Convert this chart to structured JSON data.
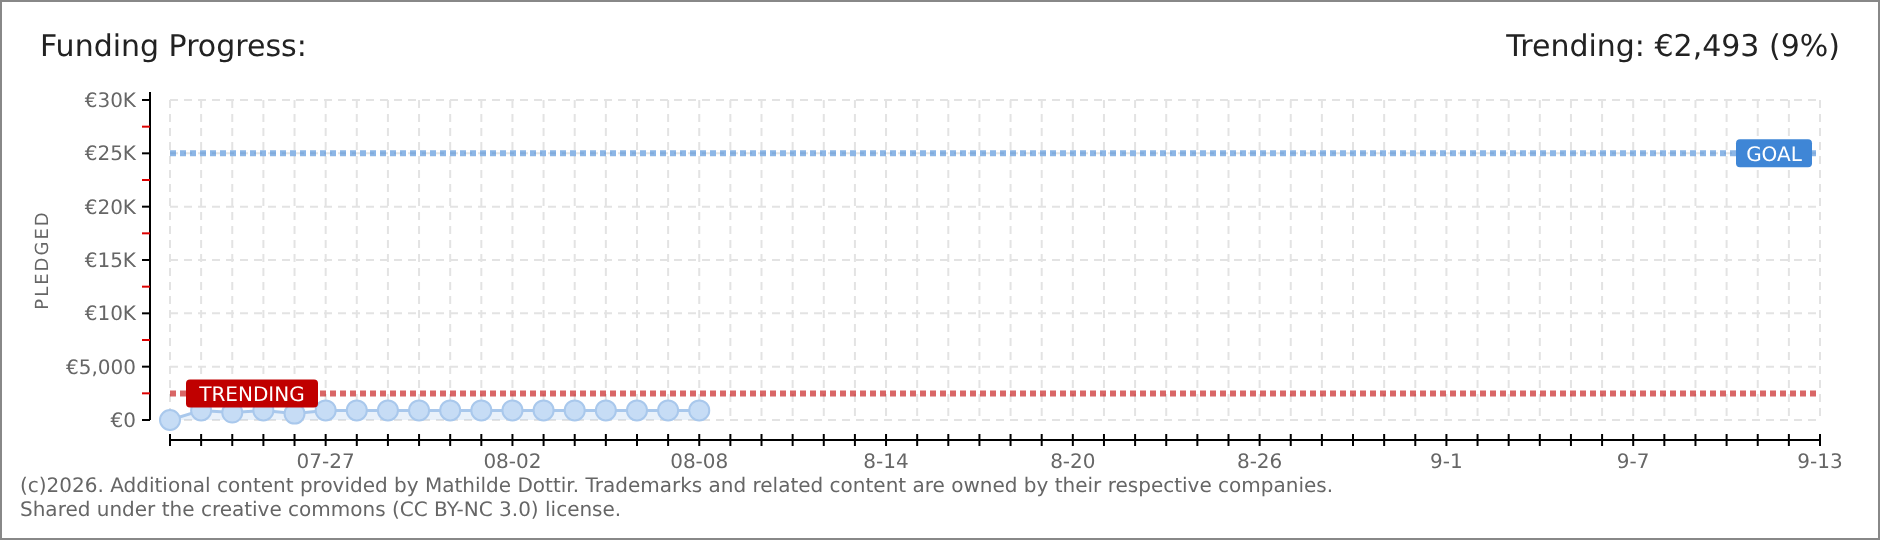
{
  "chart_data": {
    "type": "area",
    "title": "Funding Progress:",
    "subtitle": "Trending: €2,493 (9%)",
    "ylabel": "PLEDGED",
    "x": [
      "--07-22",
      "--07-23",
      "--07-24",
      "--07-25",
      "--07-26",
      "--07-27",
      "--07-28",
      "--07-29",
      "--07-30",
      "--07-31",
      "--08-01",
      "--08-02",
      "--08-03",
      "--08-04",
      "--08-05",
      "--08-06",
      "--08-07",
      "--08-08"
    ],
    "series": [
      {
        "color": "#a9c8ec",
        "values": [
          0,
          900,
          700,
          900,
          600,
          900,
          900,
          900,
          900,
          900,
          900,
          900,
          900,
          900,
          900,
          900,
          900,
          900
        ]
      }
    ],
    "marker": "circle",
    "xlim": [
      "--07-22",
      "--09-13"
    ],
    "xticks": [
      {
        "value": "--07-22",
        "label": null
      },
      {
        "value": "--07-23",
        "label": null
      },
      {
        "value": "--07-24",
        "label": null
      },
      {
        "value": "--07-25",
        "label": null
      },
      {
        "value": "--07-26",
        "label": null
      },
      {
        "value": "--07-27",
        "label": "07-27"
      },
      {
        "value": "--07-28",
        "label": null
      },
      {
        "value": "--07-29",
        "label": null
      },
      {
        "value": "--07-30",
        "label": null
      },
      {
        "value": "--07-31",
        "label": null
      },
      {
        "value": "--08-01",
        "label": null
      },
      {
        "value": "--08-02",
        "label": "08-02"
      },
      {
        "value": "--08-03",
        "label": null
      },
      {
        "value": "--08-04",
        "label": null
      },
      {
        "value": "--08-05",
        "label": null
      },
      {
        "value": "--08-06",
        "label": null
      },
      {
        "value": "--08-07",
        "label": null
      },
      {
        "value": "--08-08",
        "label": "08-08"
      },
      {
        "value": "--08-09",
        "label": null
      },
      {
        "value": "--08-10",
        "label": null
      },
      {
        "value": "--08-11",
        "label": null
      },
      {
        "value": "--08-12",
        "label": null
      },
      {
        "value": "--08-13",
        "label": null
      },
      {
        "value": "--08-14",
        "label": "8-14"
      },
      {
        "value": "--08-15",
        "label": null
      },
      {
        "value": "--08-16",
        "label": null
      },
      {
        "value": "--08-17",
        "label": null
      },
      {
        "value": "--08-18",
        "label": null
      },
      {
        "value": "--08-19",
        "label": null
      },
      {
        "value": "--08-20",
        "label": "8-20"
      },
      {
        "value": "--08-21",
        "label": null
      },
      {
        "value": "--08-22",
        "label": null
      },
      {
        "value": "--08-23",
        "label": null
      },
      {
        "value": "--08-24",
        "label": null
      },
      {
        "value": "--08-25",
        "label": null
      },
      {
        "value": "--08-26",
        "label": "8-26"
      },
      {
        "value": "--08-27",
        "label": null
      },
      {
        "value": "--08-28",
        "label": null
      },
      {
        "value": "--08-29",
        "label": null
      },
      {
        "value": "--08-30",
        "label": null
      },
      {
        "value": "--08-31",
        "label": null
      },
      {
        "value": "--09-01",
        "label": "9-1"
      },
      {
        "value": "--09-02",
        "label": null
      },
      {
        "value": "--09-03",
        "label": null
      },
      {
        "value": "--09-04",
        "label": null
      },
      {
        "value": "--09-05",
        "label": null
      },
      {
        "value": "--09-06",
        "label": null
      },
      {
        "value": "--09-07",
        "label": "9-7"
      },
      {
        "value": "--09-08",
        "label": null
      },
      {
        "value": "--09-09",
        "label": null
      },
      {
        "value": "--09-10",
        "label": null
      },
      {
        "value": "--09-11",
        "label": null
      },
      {
        "value": "--09-12",
        "label": null
      },
      {
        "value": "--09-13",
        "label": "9-13"
      }
    ],
    "ylim": [
      0,
      30000
    ],
    "yticks": [
      {
        "value": 0,
        "label": "€0"
      },
      {
        "value": 2500,
        "label": null
      },
      {
        "value": 5000,
        "label": "€5,000"
      },
      {
        "value": 7500,
        "label": null
      },
      {
        "value": 10000,
        "label": "€10K"
      },
      {
        "value": 12500,
        "label": null
      },
      {
        "value": 15000,
        "label": "€15K"
      },
      {
        "value": 17500,
        "label": null
      },
      {
        "value": 20000,
        "label": "€20K"
      },
      {
        "value": 22500,
        "label": null
      },
      {
        "value": 25000,
        "label": "€25K"
      },
      {
        "value": 27500,
        "label": null
      },
      {
        "value": 30000,
        "label": "€30K"
      }
    ],
    "grid": true,
    "ref_lines": [
      {
        "axis": "y",
        "value": 25000,
        "label": "GOAL",
        "color": "#3f86d6",
        "line_style": "dotted"
      },
      {
        "axis": "y",
        "value": 2493,
        "label": "TRENDING",
        "color": "#c00000",
        "line_style": "dotted"
      }
    ],
    "annotations": [
      "(c)2026. Additional content provided by Mathilde Dottir. Trademarks and related content are owned by their respective companies.",
      "Shared under the creative commons (CC BY-NC 3.0) license."
    ]
  }
}
